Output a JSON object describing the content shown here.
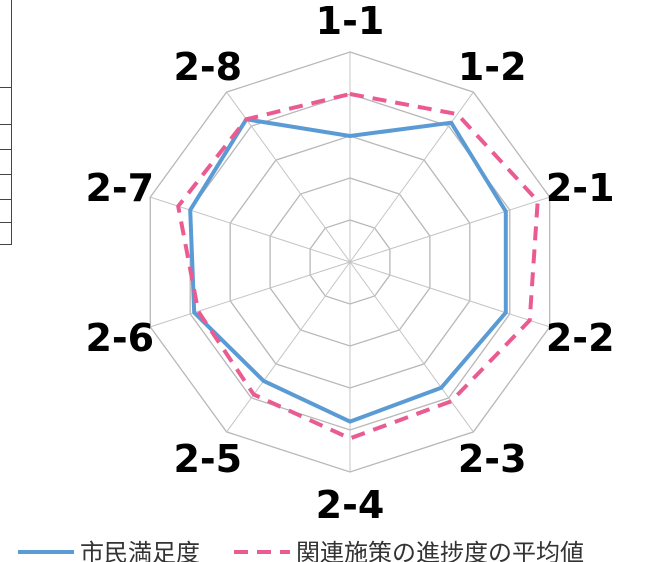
{
  "chart_data": {
    "type": "radar",
    "categories": [
      "1-1",
      "1-2",
      "2-1",
      "2-2",
      "2-3",
      "2-4",
      "2-5",
      "2-6",
      "2-7",
      "2-8"
    ],
    "rlim": [
      0,
      5
    ],
    "grid": true,
    "grid_levels": 5,
    "legend_position": "bottom",
    "series": [
      {
        "name": "市民満足度",
        "color": "#5b9bd5",
        "dash": "solid",
        "values": [
          3.0,
          4.1,
          3.9,
          3.9,
          3.7,
          3.8,
          3.5,
          3.9,
          4.0,
          4.2
        ]
      },
      {
        "name": "関連施策の進捗度の平均値",
        "color": "#ea5b91",
        "dash": "dashed",
        "values": [
          4.0,
          4.35,
          4.7,
          4.5,
          4.1,
          4.2,
          3.9,
          3.8,
          4.3,
          4.2
        ]
      }
    ]
  }
}
